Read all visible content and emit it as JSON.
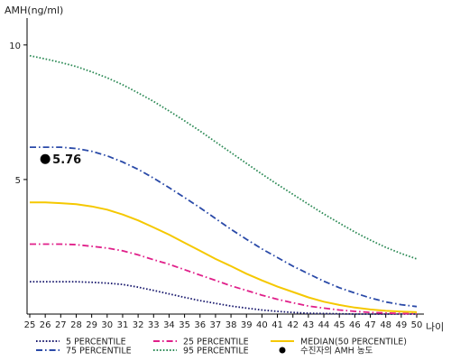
{
  "chart_data": {
    "type": "line",
    "ylabel": "AMH(ng/ml)",
    "xlabel": "나이",
    "x_ticks": [
      25,
      26,
      27,
      28,
      29,
      30,
      31,
      32,
      33,
      34,
      35,
      36,
      37,
      38,
      39,
      40,
      41,
      42,
      43,
      44,
      45,
      46,
      47,
      48,
      49,
      50
    ],
    "y_ticks": [
      5,
      10
    ],
    "xlim": [
      25,
      50
    ],
    "ylim": [
      0,
      11
    ],
    "grid": false,
    "legend_position": "bottom",
    "series": [
      {
        "name": "5 PERCENTILE",
        "color": "#1a1a6e",
        "dash": "dotted",
        "x": [
          25,
          26,
          27,
          28,
          29,
          30,
          31,
          32,
          33,
          34,
          35,
          36,
          37,
          38,
          39,
          40,
          41,
          42,
          43,
          44,
          45,
          46,
          47,
          48,
          49,
          50
        ],
        "values": [
          1.2,
          1.2,
          1.2,
          1.2,
          1.18,
          1.15,
          1.1,
          1.0,
          0.88,
          0.75,
          0.62,
          0.5,
          0.4,
          0.3,
          0.22,
          0.15,
          0.1,
          0.06,
          0.03,
          0.02,
          0.01,
          0.0,
          0.0,
          0.0,
          0.0,
          0.0
        ]
      },
      {
        "name": "25 PERCENTILE",
        "color": "#e0208a",
        "dash": "dashdot",
        "x": [
          25,
          26,
          27,
          28,
          29,
          30,
          31,
          32,
          33,
          34,
          35,
          36,
          37,
          38,
          39,
          40,
          41,
          42,
          43,
          44,
          45,
          46,
          47,
          48,
          49,
          50
        ],
        "values": [
          2.6,
          2.6,
          2.6,
          2.58,
          2.52,
          2.45,
          2.35,
          2.2,
          2.02,
          1.85,
          1.65,
          1.45,
          1.25,
          1.05,
          0.88,
          0.7,
          0.55,
          0.42,
          0.3,
          0.22,
          0.15,
          0.1,
          0.06,
          0.04,
          0.02,
          0.01
        ]
      },
      {
        "name": "MEDIAN(50 PERCENTILE)",
        "color": "#f5c800",
        "dash": "solid",
        "x": [
          25,
          26,
          27,
          28,
          29,
          30,
          31,
          32,
          33,
          34,
          35,
          36,
          37,
          38,
          39,
          40,
          41,
          42,
          43,
          44,
          45,
          46,
          47,
          48,
          49,
          50
        ],
        "values": [
          4.15,
          4.15,
          4.12,
          4.08,
          4.0,
          3.88,
          3.7,
          3.48,
          3.22,
          2.95,
          2.65,
          2.35,
          2.05,
          1.78,
          1.5,
          1.25,
          1.02,
          0.82,
          0.62,
          0.46,
          0.34,
          0.24,
          0.17,
          0.12,
          0.09,
          0.07
        ]
      },
      {
        "name": "75 PERCENTILE",
        "color": "#2a4aa8",
        "dash": "dashdot",
        "x": [
          25,
          26,
          27,
          28,
          29,
          30,
          31,
          32,
          33,
          34,
          35,
          36,
          37,
          38,
          39,
          40,
          41,
          42,
          43,
          44,
          45,
          46,
          47,
          48,
          49,
          50
        ],
        "values": [
          6.2,
          6.2,
          6.2,
          6.15,
          6.05,
          5.88,
          5.65,
          5.38,
          5.05,
          4.7,
          4.33,
          3.95,
          3.55,
          3.15,
          2.78,
          2.42,
          2.1,
          1.78,
          1.5,
          1.22,
          0.98,
          0.78,
          0.6,
          0.45,
          0.35,
          0.28
        ]
      },
      {
        "name": "95 PERCENTILE",
        "color": "#2e8b57",
        "dash": "dotted",
        "x": [
          25,
          26,
          27,
          28,
          29,
          30,
          31,
          32,
          33,
          34,
          35,
          36,
          37,
          38,
          39,
          40,
          41,
          42,
          43,
          44,
          45,
          46,
          47,
          48,
          49,
          50
        ],
        "values": [
          9.6,
          9.48,
          9.35,
          9.2,
          9.0,
          8.78,
          8.52,
          8.22,
          7.9,
          7.55,
          7.18,
          6.8,
          6.4,
          6.0,
          5.6,
          5.2,
          4.82,
          4.45,
          4.08,
          3.72,
          3.38,
          3.05,
          2.75,
          2.48,
          2.25,
          2.05
        ]
      }
    ],
    "marker": {
      "name": "수진자의 AMH 농도",
      "x": 26,
      "y": 5.76,
      "label": "5.76",
      "color": "#000000"
    },
    "legend_order": [
      "5 PERCENTILE",
      "25 PERCENTILE",
      "MEDIAN(50 PERCENTILE)",
      "75 PERCENTILE",
      "95 PERCENTILE",
      "수진자의 AMH 농도"
    ]
  }
}
